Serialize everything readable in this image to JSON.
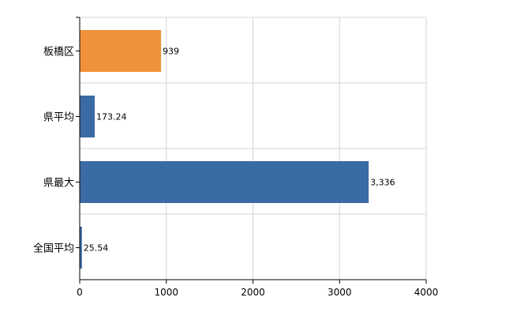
{
  "chart_data": {
    "type": "bar",
    "orientation": "horizontal",
    "title": "",
    "xlabel": "",
    "ylabel": "",
    "categories": [
      "板橋区",
      "県平均",
      "県最大",
      "全国平均"
    ],
    "values": [
      939,
      173.24,
      3336,
      25.54
    ],
    "value_labels": [
      "939",
      "173.24",
      "3,336",
      "25.54"
    ],
    "colors": [
      "#f0923a",
      "#3b6ba5",
      "#3b6ba5",
      "#3b6ba5"
    ],
    "xlim": [
      0,
      4000
    ],
    "xticks": [
      0,
      1000,
      2000,
      3000,
      4000
    ],
    "xtick_labels": [
      "0",
      "1000",
      "2000",
      "3000",
      "4000"
    ],
    "grid": true,
    "legend": "none"
  }
}
